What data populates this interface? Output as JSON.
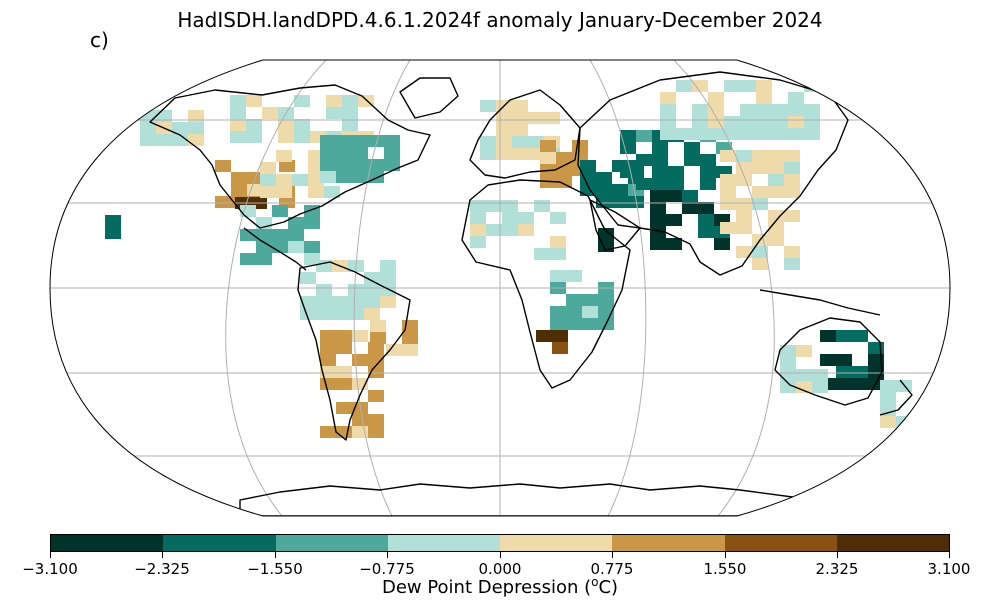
{
  "title": "HadISDH.landDPD.4.6.1.2024f anomaly January-December 2024",
  "panel_label": "c)",
  "colorbar": {
    "label_text": "Dew Point Depression (",
    "label_sup": "o",
    "label_unit": "C)",
    "ticks": [
      "−3.100",
      "−2.325",
      "−1.550",
      "−0.775",
      "0.000",
      "0.775",
      "1.550",
      "2.325",
      "3.100"
    ],
    "colors": [
      "#00332a",
      "#046b60",
      "#4da99b",
      "#b0e0d8",
      "#efdaaa",
      "#c99746",
      "#8a5212",
      "#4f2e06"
    ]
  },
  "map": {
    "projection": "Robinson",
    "gridlines": true,
    "coastlines": true,
    "cell_size_deg": 5
  },
  "anomaly_regions": [
    {
      "region": "western-us",
      "level": 6
    },
    {
      "region": "southwest-us",
      "level": 8
    },
    {
      "region": "central-us",
      "level": 5
    },
    {
      "region": "alaska",
      "level": 4
    },
    {
      "region": "northern-canada",
      "level": 4
    },
    {
      "region": "eastern-canada",
      "level": 3
    },
    {
      "region": "hawaii",
      "level": 2
    },
    {
      "region": "central-america",
      "level": 3
    },
    {
      "region": "northern-south-america",
      "level": 4
    },
    {
      "region": "southern-south-america",
      "level": 6
    },
    {
      "region": "southeast-brazil",
      "level": 6
    },
    {
      "region": "europe",
      "level": 5
    },
    {
      "region": "eastern-europe",
      "level": 6
    },
    {
      "region": "sahara",
      "level": 4
    },
    {
      "region": "middle-east",
      "level": 2
    },
    {
      "region": "persian-gulf",
      "level": 1
    },
    {
      "region": "india",
      "level": 1
    },
    {
      "region": "central-asia",
      "level": 2
    },
    {
      "region": "siberia",
      "level": 4
    },
    {
      "region": "east-asia",
      "level": 5
    },
    {
      "region": "southern-africa",
      "level": 8
    },
    {
      "region": "east-africa",
      "level": 3
    },
    {
      "region": "australia-southeast",
      "level": 1
    },
    {
      "region": "australia-west",
      "level": 4
    },
    {
      "region": "new-zealand",
      "level": 4
    }
  ]
}
